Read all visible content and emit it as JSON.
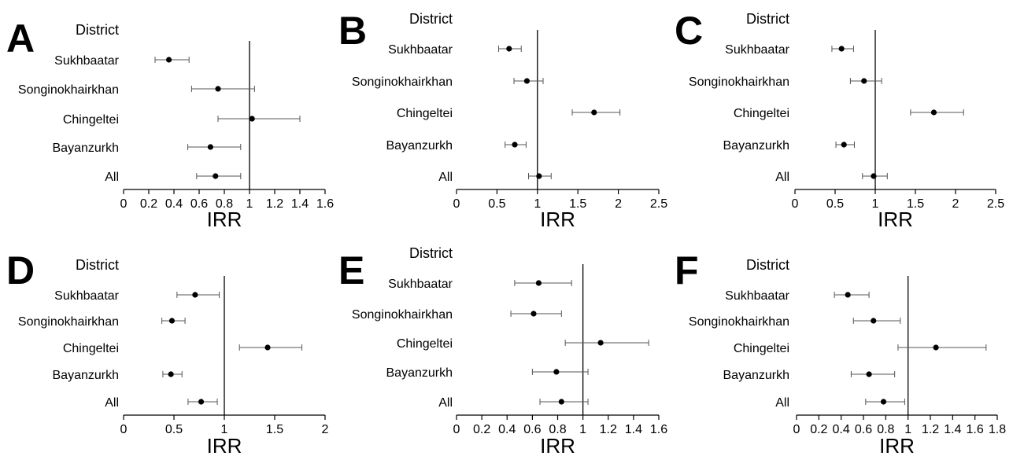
{
  "chart_data": [
    {
      "type": "scatter",
      "panel": "A",
      "category_title": "District",
      "categories": [
        "Sukhbaatar",
        "Songinokhairkhan",
        "Chingeltei",
        "Bayanzurkh",
        "All"
      ],
      "points": [
        {
          "category": "Sukhbaatar",
          "estimate": 0.36,
          "ci_low": 0.25,
          "ci_high": 0.52
        },
        {
          "category": "Songinokhairkhan",
          "estimate": 0.75,
          "ci_low": 0.54,
          "ci_high": 1.04
        },
        {
          "category": "Chingeltei",
          "estimate": 1.02,
          "ci_low": 0.75,
          "ci_high": 1.4
        },
        {
          "category": "Bayanzurkh",
          "estimate": 0.69,
          "ci_low": 0.51,
          "ci_high": 0.93
        },
        {
          "category": "All",
          "estimate": 0.73,
          "ci_low": 0.58,
          "ci_high": 0.93
        }
      ],
      "xlabel": "IRR",
      "xticks": [
        "0",
        "0.2",
        "0.4",
        "0.6",
        "0.8",
        "1",
        "1.2",
        "1.4",
        "1.6"
      ],
      "xlim": [
        0,
        1.6
      ],
      "reference_x": 1
    },
    {
      "type": "scatter",
      "panel": "B",
      "category_title": "District",
      "categories": [
        "Sukhbaatar",
        "Songinokhairkhan",
        "Chingeltei",
        "Bayanzurkh",
        "All"
      ],
      "points": [
        {
          "category": "Sukhbaatar",
          "estimate": 0.65,
          "ci_low": 0.52,
          "ci_high": 0.8
        },
        {
          "category": "Songinokhairkhan",
          "estimate": 0.87,
          "ci_low": 0.71,
          "ci_high": 1.07
        },
        {
          "category": "Chingeltei",
          "estimate": 1.7,
          "ci_low": 1.43,
          "ci_high": 2.02
        },
        {
          "category": "Bayanzurkh",
          "estimate": 0.72,
          "ci_low": 0.6,
          "ci_high": 0.86
        },
        {
          "category": "All",
          "estimate": 1.02,
          "ci_low": 0.89,
          "ci_high": 1.17
        }
      ],
      "xlabel": "IRR",
      "xticks": [
        "0",
        "0.5",
        "1",
        "1.5",
        "2",
        "2.5"
      ],
      "xlim": [
        0,
        2.5
      ],
      "reference_x": 1
    },
    {
      "type": "scatter",
      "panel": "C",
      "category_title": "District",
      "categories": [
        "Sukhbaatar",
        "Songinokhairkhan",
        "Chingeltei",
        "Bayanzurkh",
        "All"
      ],
      "points": [
        {
          "category": "Sukhbaatar",
          "estimate": 0.58,
          "ci_low": 0.46,
          "ci_high": 0.73
        },
        {
          "category": "Songinokhairkhan",
          "estimate": 0.86,
          "ci_low": 0.69,
          "ci_high": 1.08
        },
        {
          "category": "Chingeltei",
          "estimate": 1.73,
          "ci_low": 1.44,
          "ci_high": 2.1
        },
        {
          "category": "Bayanzurkh",
          "estimate": 0.61,
          "ci_low": 0.51,
          "ci_high": 0.74
        },
        {
          "category": "All",
          "estimate": 0.98,
          "ci_low": 0.84,
          "ci_high": 1.15
        }
      ],
      "xlabel": "IRR",
      "xticks": [
        "0",
        "0.5",
        "1",
        "1.5",
        "2",
        "2.5"
      ],
      "xlim": [
        0,
        2.5
      ],
      "reference_x": 1
    },
    {
      "type": "scatter",
      "panel": "D",
      "category_title": "District",
      "categories": [
        "Sukhbaatar",
        "Songinokhairkhan",
        "Chingeltei",
        "Bayanzurkh",
        "All"
      ],
      "points": [
        {
          "category": "Sukhbaatar",
          "estimate": 0.71,
          "ci_low": 0.53,
          "ci_high": 0.95
        },
        {
          "category": "Songinokhairkhan",
          "estimate": 0.48,
          "ci_low": 0.38,
          "ci_high": 0.61
        },
        {
          "category": "Chingeltei",
          "estimate": 1.43,
          "ci_low": 1.15,
          "ci_high": 1.77
        },
        {
          "category": "Bayanzurkh",
          "estimate": 0.47,
          "ci_low": 0.39,
          "ci_high": 0.58
        },
        {
          "category": "All",
          "estimate": 0.77,
          "ci_low": 0.64,
          "ci_high": 0.93
        }
      ],
      "xlabel": "IRR",
      "xticks": [
        "0",
        "0.5",
        "1",
        "1.5",
        "2"
      ],
      "xlim": [
        0,
        2
      ],
      "reference_x": 1
    },
    {
      "type": "scatter",
      "panel": "E",
      "category_title": "District",
      "categories": [
        "Sukhbaatar",
        "Songinokhairkhan",
        "Chingeltei",
        "Bayanzurkh",
        "All"
      ],
      "points": [
        {
          "category": "Sukhbaatar",
          "estimate": 0.65,
          "ci_low": 0.46,
          "ci_high": 0.91
        },
        {
          "category": "Songinokhairkhan",
          "estimate": 0.61,
          "ci_low": 0.43,
          "ci_high": 0.83
        },
        {
          "category": "Chingeltei",
          "estimate": 1.14,
          "ci_low": 0.86,
          "ci_high": 1.52
        },
        {
          "category": "Bayanzurkh",
          "estimate": 0.79,
          "ci_low": 0.6,
          "ci_high": 1.04
        },
        {
          "category": "All",
          "estimate": 0.83,
          "ci_low": 0.66,
          "ci_high": 1.04
        }
      ],
      "xlabel": "IRR",
      "xticks": [
        "0",
        "0.2",
        "0.4",
        "0.6",
        "0.8",
        "1",
        "1.2",
        "1.4",
        "1.6"
      ],
      "xlim": [
        0,
        1.6
      ],
      "reference_x": 1
    },
    {
      "type": "scatter",
      "panel": "F",
      "category_title": "District",
      "categories": [
        "Sukhbaatar",
        "Songinokhairkhan",
        "Chingeltei",
        "Bayanzurkh",
        "All"
      ],
      "points": [
        {
          "category": "Sukhbaatar",
          "estimate": 0.46,
          "ci_low": 0.34,
          "ci_high": 0.65
        },
        {
          "category": "Songinokhairkhan",
          "estimate": 0.69,
          "ci_low": 0.51,
          "ci_high": 0.93
        },
        {
          "category": "Chingeltei",
          "estimate": 1.25,
          "ci_low": 0.91,
          "ci_high": 1.7
        },
        {
          "category": "Bayanzurkh",
          "estimate": 0.65,
          "ci_low": 0.49,
          "ci_high": 0.88
        },
        {
          "category": "All",
          "estimate": 0.78,
          "ci_low": 0.62,
          "ci_high": 0.97
        }
      ],
      "xlabel": "IRR",
      "xticks": [
        "0",
        "0.2",
        "0.4",
        "0.6",
        "0.8",
        "1",
        "1.2",
        "1.4",
        "1.6",
        "1.8"
      ],
      "xlim": [
        0,
        1.8
      ],
      "reference_x": 1
    }
  ]
}
